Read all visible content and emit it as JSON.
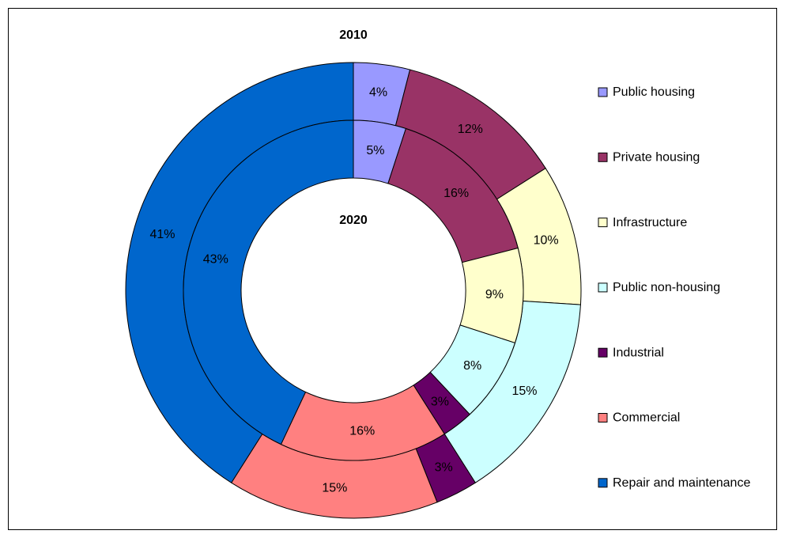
{
  "chart_data": {
    "type": "doughnut",
    "categories": [
      "Public housing",
      "Private housing",
      "Infrastructure",
      "Public non-housing",
      "Industrial",
      "Commercial",
      "Repair and maintenance"
    ],
    "colors": [
      "#9999ff",
      "#993366",
      "#ffffcc",
      "#ccffff",
      "#660066",
      "#ff8080",
      "#0066cc"
    ],
    "series": [
      {
        "name": "2010",
        "values": [
          4,
          12,
          10,
          15,
          3,
          15,
          41
        ],
        "value_labels": [
          "4%",
          "12%",
          "10%",
          "15%",
          "3%",
          "15%",
          "41%"
        ]
      },
      {
        "name": "2020",
        "values": [
          5,
          16,
          9,
          8,
          3,
          16,
          43
        ],
        "value_labels": [
          "5%",
          "16%",
          "9%",
          "8%",
          "3%",
          "16%",
          "43%"
        ]
      }
    ],
    "legend": "right"
  }
}
